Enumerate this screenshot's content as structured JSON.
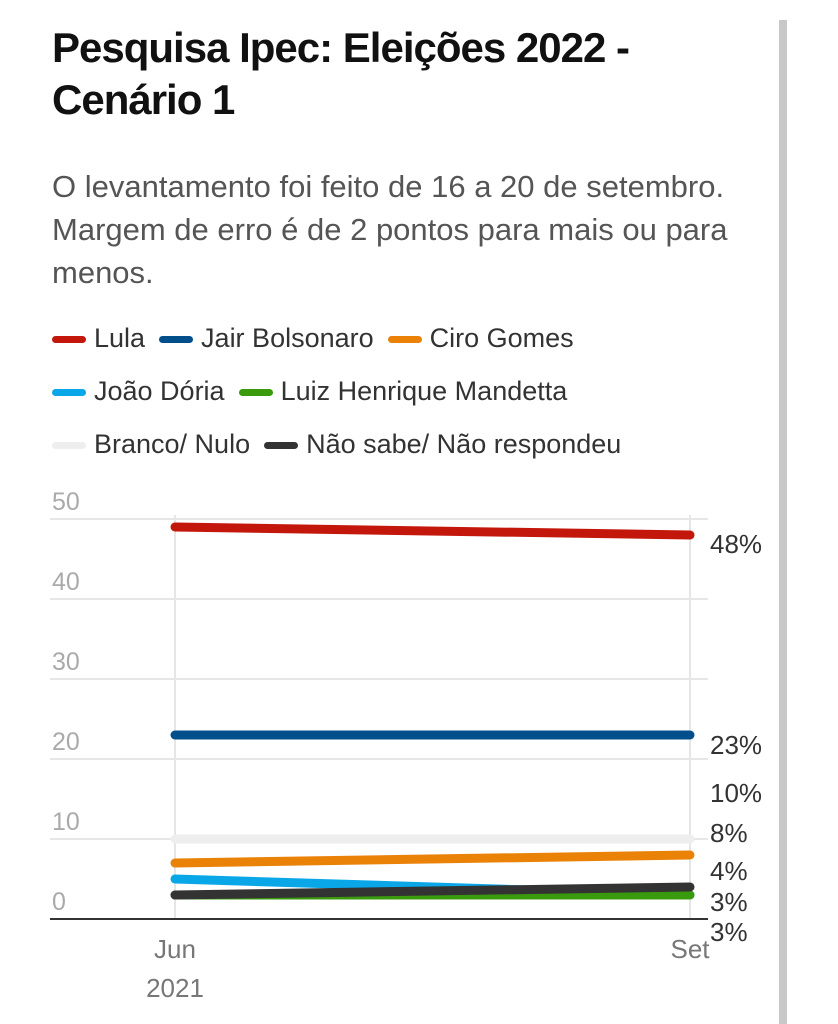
{
  "chart_data": {
    "type": "line",
    "title": "Pesquisa Ipec: Eleições 2022 - Cenário 1",
    "subtitle": "O levantamento foi feito de 16 a 20 de setembro. Margem de erro é de 2 pontos para mais ou para menos.",
    "x": [
      "Jun",
      "Set"
    ],
    "x_sublabels": [
      "2021",
      ""
    ],
    "ylim": [
      0,
      50
    ],
    "yticks": [
      "0",
      "10",
      "20",
      "30",
      "40",
      "50"
    ],
    "grid": true,
    "legend_placement": "top",
    "series": [
      {
        "name": "Lula",
        "color": "#c4170c",
        "values": [
          49,
          48
        ],
        "end_label": "48%"
      },
      {
        "name": "Jair Bolsonaro",
        "color": "#004f8b",
        "values": [
          23,
          23
        ],
        "end_label": "23%"
      },
      {
        "name": "Ciro Gomes",
        "color": "#ea8208",
        "values": [
          7,
          8
        ],
        "end_label": "8%"
      },
      {
        "name": "João Dória",
        "color": "#0aa7e8",
        "values": [
          5,
          3
        ],
        "end_label": "3%"
      },
      {
        "name": "Luiz Henrique Mandetta",
        "color": "#3a9a0e",
        "values": [
          3,
          3
        ],
        "end_label": "3%"
      },
      {
        "name": "Branco/ Nulo",
        "color": "#eeeeee",
        "values": [
          10,
          10
        ],
        "end_label": "10%"
      },
      {
        "name": "Não sabe/ Não respondeu",
        "color": "#333333",
        "values": [
          3,
          4
        ],
        "end_label": "4%"
      }
    ],
    "end_labels_order": [
      "48%",
      "23%",
      "10%",
      "8%",
      "4%",
      "3%",
      "3%"
    ]
  }
}
